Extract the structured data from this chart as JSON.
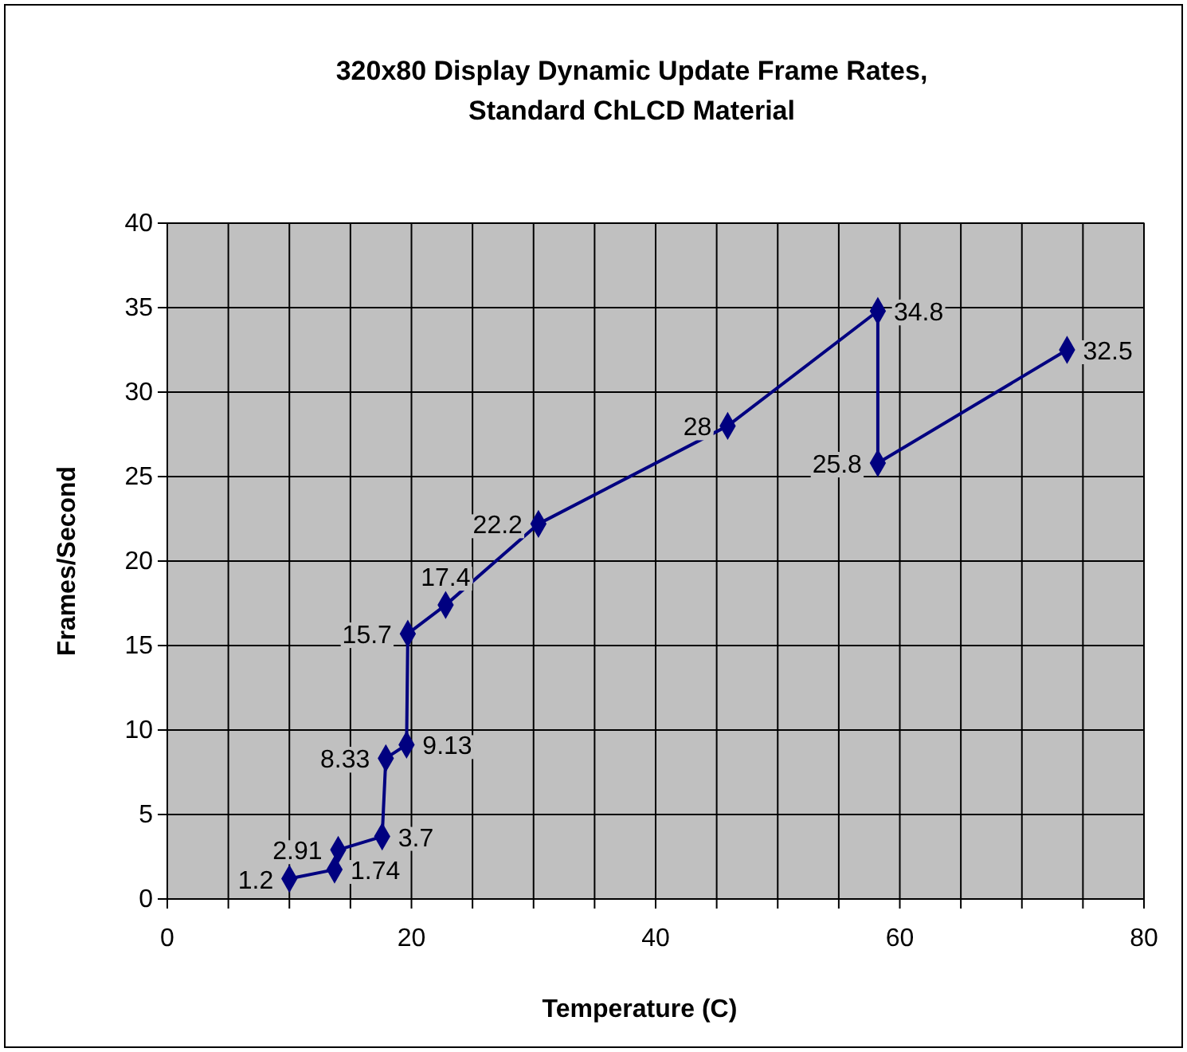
{
  "chart_data": {
    "type": "line",
    "title": "320x80 Display Dynamic Update Frame Rates,\nStandard ChLCD Material",
    "xlabel": "Temperature (C)",
    "ylabel": "Frames/Second",
    "series": [
      {
        "color": "#000080",
        "x": [
          10,
          13.7,
          14,
          17.6,
          17.9,
          19.6,
          19.7,
          22.8,
          30.4,
          45.9,
          58.2,
          58.2,
          73.7
        ],
        "values": [
          1.2,
          1.74,
          2.91,
          3.7,
          8.33,
          9.13,
          15.7,
          17.4,
          22.2,
          28,
          34.8,
          25.8,
          32.5
        ]
      }
    ],
    "xlim": [
      0,
      80
    ],
    "xticks": [
      0,
      {
        "value": 5,
        "label": null
      },
      {
        "value": 10,
        "label": null
      },
      {
        "value": 15,
        "label": null
      },
      20,
      {
        "value": 25,
        "label": null
      },
      {
        "value": 30,
        "label": null
      },
      {
        "value": 35,
        "label": null
      },
      40,
      {
        "value": 45,
        "label": null
      },
      {
        "value": 50,
        "label": null
      },
      {
        "value": 55,
        "label": null
      },
      60,
      {
        "value": 65,
        "label": null
      },
      {
        "value": 70,
        "label": null
      },
      {
        "value": 75,
        "label": null
      },
      80
    ],
    "ylim": [
      0,
      40
    ],
    "yticks": [
      0,
      5,
      10,
      15,
      20,
      25,
      30,
      35,
      40
    ],
    "grid": true,
    "marker": "diamond",
    "line_style": "solid",
    "data_labels": true
  }
}
